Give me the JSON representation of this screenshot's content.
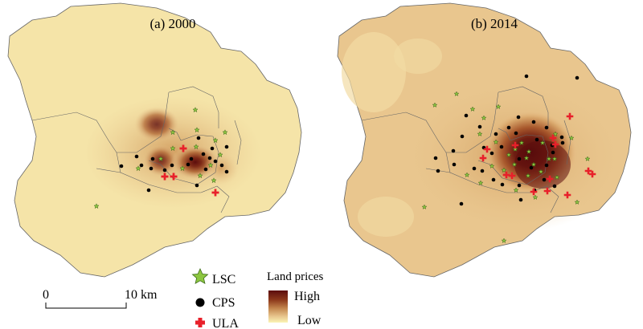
{
  "panels": [
    {
      "title": "(a) 2000"
    },
    {
      "title": "(b) 2014"
    }
  ],
  "scale_bar": {
    "start_label": "0",
    "end_label": "10 km"
  },
  "legend": {
    "points": [
      {
        "label": "LSC",
        "symbol": "star-icon",
        "color": "#8cc63f"
      },
      {
        "label": "CPS",
        "symbol": "dot-icon",
        "color": "#000000"
      },
      {
        "label": "ULA",
        "symbol": "cross-icon",
        "color": "#e8202a"
      }
    ],
    "ramp": {
      "title": "Land prices",
      "high_label": "High",
      "low_label": "Low",
      "colors": [
        "#5c0d0d",
        "#8e3a1c",
        "#c2844c",
        "#e7c48c",
        "#fbf4b4"
      ]
    }
  }
}
